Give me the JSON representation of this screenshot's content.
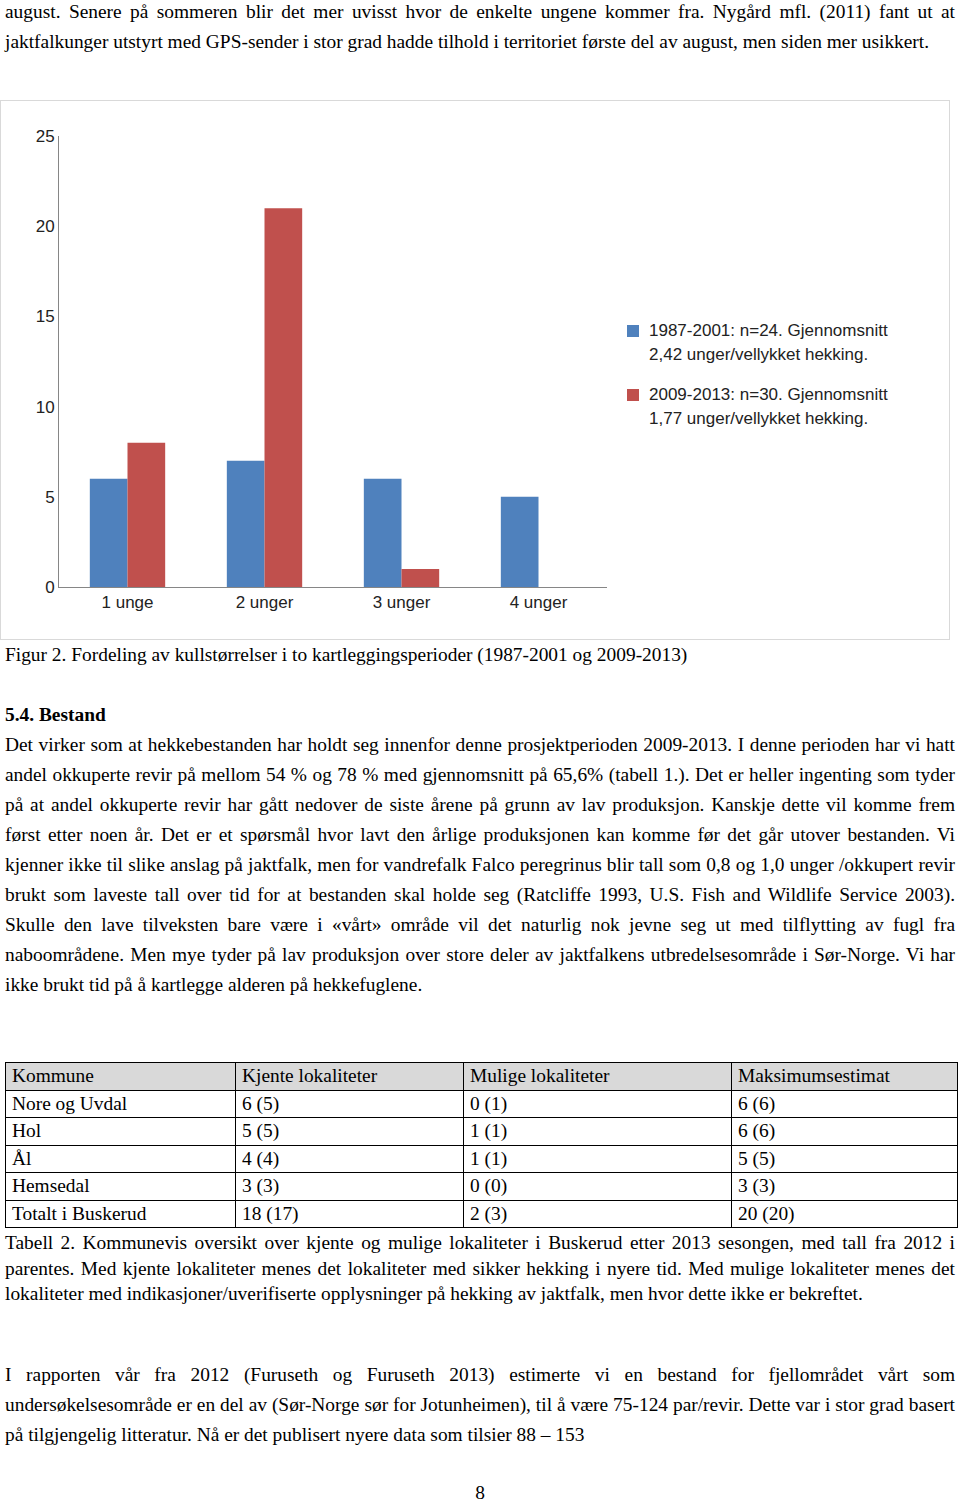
{
  "top_text": "august. Senere på sommeren blir det mer uvisst hvor de enkelte ungene kommer fra. Nygård mfl. (2011) fant ut at jaktfalkunger utstyrt med GPS-sender i stor grad hadde tilhold i territoriet første del av august, men siden mer usikkert.",
  "chart_data": {
    "type": "bar",
    "categories": [
      "1 unge",
      "2 unger",
      "3 unger",
      "4 unger"
    ],
    "series": [
      {
        "name": "1987-2001: n=24. Gjennomsnitt 2,42 unger/vellykket hekking.",
        "color": "#4f81bd",
        "values": [
          6,
          7,
          6,
          5
        ]
      },
      {
        "name": "2009-2013: n=30. Gjennomsnitt 1,77 unger/vellykket hekking.",
        "color": "#c0504d",
        "values": [
          8,
          21,
          1,
          0
        ]
      }
    ],
    "ylim": [
      0,
      25
    ],
    "yticks": [
      0,
      5,
      10,
      15,
      20,
      25
    ],
    "grid": false,
    "legend": "right"
  },
  "figure_caption": "Figur 2. Fordeling av kullstørrelser i to kartleggingsperioder (1987-2001 og 2009-2013)",
  "section_heading": "5.4. Bestand",
  "section_paragraph": "Det virker som at hekkebestanden har holdt seg innenfor denne prosjektperioden 2009-2013. I denne perioden har vi hatt andel okkuperte revir på mellom 54 % og 78 % med gjennomsnitt på 65,6% (tabell 1.). Det er heller ingenting som tyder på at andel okkuperte revir har gått nedover de siste årene på grunn av lav produksjon. Kanskje dette vil komme frem først etter noen år. Det er et spørsmål hvor lavt den årlige produksjonen kan komme før det går utover bestanden. Vi kjenner ikke til slike anslag på jaktfalk, men for vandrefalk Falco peregrinus blir tall som 0,8 og 1,0 unger /okkupert revir brukt som laveste tall over tid for at bestanden skal holde seg (Ratcliffe 1993, U.S. Fish and Wildlife Service 2003). Skulle den lave tilveksten bare være i «vårt» område vil det naturlig nok jevne seg ut med tilflytting av fugl fra naboområdene. Men mye tyder på lav produksjon over store deler av jaktfalkens utbredelsesområde i Sør-Norge. Vi har ikke brukt tid på å kartlegge alderen på hekkefuglene.",
  "table": {
    "header": [
      "Kommune",
      "Kjente lokaliteter",
      "Mulige lokaliteter",
      "Maksimumsestimat"
    ],
    "rows": [
      [
        "Nore og Uvdal",
        "6 (5)",
        "0 (1)",
        "6 (6)"
      ],
      [
        "Hol",
        "5 (5)",
        "1 (1)",
        "6 (6)"
      ],
      [
        "Ål",
        "4 (4)",
        "1 (1)",
        "5 (5)"
      ],
      [
        "Hemsedal",
        "3 (3)",
        "0 (0)",
        "3 (3)"
      ],
      [
        "Totalt i Buskerud",
        "18 (17)",
        "2 (3)",
        "20 (20)"
      ]
    ]
  },
  "table_caption": "Tabell 2. Kommunevis oversikt over kjente og mulige lokaliteter i Buskerud etter 2013 sesongen, med tall fra 2012 i parentes. Med kjente lokaliteter menes det lokaliteter med sikker hekking i nyere tid. Med mulige lokaliteter menes det lokaliteter med indikasjoner/uverifiserte opplysninger på hekking av jaktfalk, men hvor dette ikke er bekreftet.",
  "final_paragraph": "I rapporten vår fra 2012 (Furuseth og Furuseth 2013) estimerte vi en bestand for fjellområdet vårt som undersøkelsesområde er en del av (Sør-Norge sør for Jotunheimen), til å være 75-124 par/revir. Dette var i stor grad basert på tilgjengelig litteratur. Nå er det publisert nyere data som tilsier 88 – 153",
  "page_number": "8"
}
